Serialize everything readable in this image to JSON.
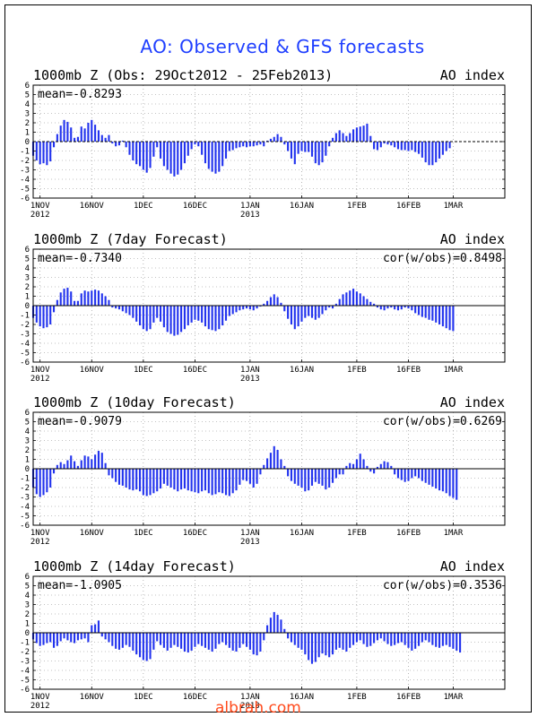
{
  "title": "AO: Observed & GFS forecasts",
  "watermark": "albrah.com",
  "colors": {
    "bar": "#2233ee",
    "axis": "#000000",
    "grid": "#888888",
    "title": "#1f3fff",
    "watermark": "#ff4a1c"
  },
  "x_ticks": [
    {
      "day": 0,
      "label": "1NOV",
      "year": "2012"
    },
    {
      "day": 15,
      "label": "16NOV",
      "year": ""
    },
    {
      "day": 30,
      "label": "1DEC",
      "year": ""
    },
    {
      "day": 45,
      "label": "16DEC",
      "year": ""
    },
    {
      "day": 61,
      "label": "1JAN",
      "year": "2013"
    },
    {
      "day": 76,
      "label": "16JAN",
      "year": ""
    },
    {
      "day": 92,
      "label": "1FEB",
      "year": ""
    },
    {
      "day": 107,
      "label": "16FEB",
      "year": ""
    },
    {
      "day": 120,
      "label": "1MAR",
      "year": ""
    }
  ],
  "chart_data": [
    {
      "type": "bar",
      "title": "1000mb Z (Obs: 29Oct2012 - 25Feb2013)",
      "right_title": "AO index",
      "mean": "mean=-0.8293",
      "cor": "",
      "x_start": -2,
      "ylim": [
        -6,
        6
      ],
      "yticks": [
        6,
        5,
        4,
        3,
        2,
        1,
        0,
        -1,
        -2,
        -3,
        -4,
        -5,
        -6
      ],
      "values": [
        -1.5,
        -2.0,
        -2.4,
        -2.3,
        -2.5,
        -2.1,
        -0.6,
        0.8,
        1.7,
        2.3,
        2.1,
        1.5,
        0.4,
        0.5,
        1.6,
        1.4,
        2.0,
        2.3,
        1.8,
        1.2,
        0.7,
        0.4,
        0.7,
        -0.2,
        -0.5,
        -0.4,
        0.1,
        -0.6,
        -1.4,
        -2.0,
        -2.4,
        -2.6,
        -3.0,
        -3.3,
        -2.8,
        -1.6,
        -0.6,
        -1.8,
        -2.6,
        -3.0,
        -3.4,
        -3.7,
        -3.5,
        -3.0,
        -2.3,
        -1.5,
        -0.8,
        -0.3,
        -0.5,
        -1.4,
        -2.3,
        -2.9,
        -3.2,
        -3.4,
        -3.2,
        -2.6,
        -1.8,
        -1.0,
        -0.9,
        -0.7,
        -0.6,
        -0.5,
        -0.6,
        -0.5,
        -0.5,
        -0.4,
        -0.3,
        -0.5,
        0.1,
        0.3,
        0.5,
        0.8,
        0.5,
        -0.3,
        -1.0,
        -1.8,
        -2.4,
        -1.3,
        -1.0,
        -1.1,
        -1.1,
        -1.6,
        -2.3,
        -2.5,
        -2.2,
        -1.5,
        -0.5,
        0.4,
        0.9,
        1.2,
        0.9,
        0.6,
        0.9,
        1.3,
        1.5,
        1.6,
        1.7,
        1.9,
        0.6,
        -0.8,
        -0.9,
        -0.6,
        -0.2,
        -0.3,
        -0.4,
        -0.6,
        -0.8,
        -0.9,
        -0.9,
        -1.0,
        -0.9,
        -1.1,
        -1.3,
        -1.7,
        -2.2,
        -2.5,
        -2.5,
        -2.2,
        -1.8,
        -1.4,
        -1.0,
        -0.7
      ]
    },
    {
      "type": "bar",
      "title": "1000mb Z (7day Forecast)",
      "right_title": "AO index",
      "mean": "mean=-0.7340",
      "cor": "cor(w/obs)=0.8498",
      "x_start": -2,
      "ylim": [
        -6,
        6
      ],
      "yticks": [
        6,
        5,
        4,
        3,
        2,
        1,
        0,
        -1,
        -2,
        -3,
        -4,
        -5,
        -6
      ],
      "values": [
        -1.3,
        -1.8,
        -2.2,
        -2.4,
        -2.3,
        -2.0,
        -0.7,
        0.6,
        1.4,
        1.8,
        1.9,
        1.5,
        0.5,
        0.5,
        1.3,
        1.6,
        1.5,
        1.6,
        1.7,
        1.6,
        1.3,
        1.0,
        0.6,
        -0.2,
        -0.3,
        -0.4,
        -0.6,
        -0.8,
        -1.0,
        -1.3,
        -1.7,
        -2.1,
        -2.5,
        -2.7,
        -2.5,
        -1.8,
        -1.3,
        -1.7,
        -2.3,
        -2.8,
        -3.0,
        -3.2,
        -3.1,
        -2.8,
        -2.5,
        -2.1,
        -1.8,
        -1.5,
        -1.6,
        -1.8,
        -2.2,
        -2.5,
        -2.6,
        -2.7,
        -2.5,
        -2.1,
        -1.6,
        -1.1,
        -0.9,
        -0.7,
        -0.5,
        -0.4,
        -0.3,
        -0.4,
        -0.5,
        -0.3,
        -0.1,
        0.2,
        0.5,
        0.9,
        1.2,
        0.9,
        0.3,
        -0.6,
        -1.4,
        -2.0,
        -2.5,
        -2.2,
        -1.7,
        -1.3,
        -1.1,
        -1.3,
        -1.5,
        -1.3,
        -0.9,
        -0.5,
        -0.2,
        -0.3,
        0.2,
        0.7,
        1.2,
        1.4,
        1.6,
        1.8,
        1.5,
        1.3,
        1.0,
        0.7,
        0.4,
        0.2,
        -0.2,
        -0.4,
        -0.5,
        -0.3,
        -0.2,
        -0.4,
        -0.5,
        -0.4,
        -0.2,
        -0.3,
        -0.5,
        -0.8,
        -1.0,
        -1.2,
        -1.3,
        -1.5,
        -1.6,
        -1.8,
        -2.0,
        -2.2,
        -2.4,
        -2.6,
        -2.7
      ]
    },
    {
      "type": "bar",
      "title": "1000mb Z (10day Forecast)",
      "right_title": "AO index",
      "mean": "mean=-0.9079",
      "cor": "cor(w/obs)=0.6269",
      "x_start": -2,
      "ylim": [
        -6,
        6
      ],
      "yticks": [
        6,
        5,
        4,
        3,
        2,
        1,
        0,
        -1,
        -2,
        -3,
        -4,
        -5,
        -6
      ],
      "values": [
        -2.0,
        -2.7,
        -3.0,
        -2.8,
        -2.5,
        -2.0,
        -0.5,
        0.4,
        0.7,
        0.5,
        0.9,
        1.4,
        0.8,
        0.3,
        0.9,
        1.4,
        1.3,
        1.0,
        1.5,
        1.9,
        1.7,
        0.6,
        -0.7,
        -1.0,
        -1.4,
        -1.7,
        -1.8,
        -2.0,
        -2.2,
        -2.3,
        -2.2,
        -2.4,
        -2.8,
        -2.9,
        -2.8,
        -2.6,
        -2.4,
        -2.1,
        -1.6,
        -1.8,
        -2.0,
        -2.2,
        -2.4,
        -2.2,
        -2.1,
        -2.3,
        -2.4,
        -2.5,
        -2.6,
        -2.4,
        -2.3,
        -2.6,
        -2.8,
        -2.7,
        -2.5,
        -2.6,
        -2.8,
        -2.9,
        -2.6,
        -2.3,
        -1.7,
        -1.2,
        -1.3,
        -1.6,
        -2.0,
        -1.6,
        -0.6,
        0.4,
        1.1,
        1.7,
        2.4,
        2.0,
        1.0,
        0.3,
        -0.8,
        -1.3,
        -1.6,
        -1.8,
        -2.0,
        -2.4,
        -2.3,
        -1.8,
        -1.4,
        -1.6,
        -1.8,
        -2.2,
        -2.0,
        -1.5,
        -1.0,
        -0.6,
        -0.6,
        0.3,
        0.6,
        0.5,
        1.0,
        1.6,
        1.0,
        0.3,
        -0.3,
        -0.5,
        0.2,
        0.5,
        0.8,
        0.7,
        0.3,
        -0.6,
        -1.0,
        -1.2,
        -1.4,
        -1.3,
        -1.0,
        -0.8,
        -1.0,
        -1.3,
        -1.5,
        -1.7,
        -1.9,
        -2.1,
        -2.3,
        -2.4,
        -2.6,
        -2.9,
        -3.1,
        -3.3
      ]
    },
    {
      "type": "bar",
      "title": "1000mb Z (14day Forecast)",
      "right_title": "AO index",
      "mean": "mean=-1.0905",
      "cor": "cor(w/obs)=0.3536",
      "x_start": -2,
      "ylim": [
        -6,
        6
      ],
      "yticks": [
        6,
        5,
        4,
        3,
        2,
        1,
        0,
        -1,
        -2,
        -3,
        -4,
        -5,
        -6
      ],
      "values": [
        -0.7,
        -1.1,
        -1.4,
        -1.3,
        -1.1,
        -1.0,
        -1.6,
        -1.4,
        -0.9,
        -0.6,
        -0.8,
        -1.0,
        -1.1,
        -0.8,
        -0.7,
        -0.6,
        -1.0,
        0.8,
        0.9,
        1.3,
        -0.4,
        -0.7,
        -1.0,
        -1.4,
        -1.7,
        -1.8,
        -1.6,
        -1.3,
        -1.5,
        -1.9,
        -2.3,
        -2.6,
        -2.9,
        -3.0,
        -2.8,
        -1.8,
        -0.9,
        -1.3,
        -1.6,
        -1.9,
        -1.6,
        -1.3,
        -1.5,
        -1.7,
        -2.0,
        -2.1,
        -1.9,
        -1.5,
        -1.2,
        -1.4,
        -1.6,
        -1.8,
        -2.0,
        -1.7,
        -1.2,
        -1.0,
        -1.3,
        -1.6,
        -1.9,
        -2.0,
        -1.6,
        -1.2,
        -1.5,
        -1.8,
        -2.3,
        -2.4,
        -2.0,
        -0.8,
        0.8,
        1.6,
        2.2,
        1.9,
        1.4,
        0.4,
        -0.6,
        -1.0,
        -1.3,
        -1.6,
        -1.8,
        -2.3,
        -2.9,
        -3.3,
        -3.1,
        -2.6,
        -2.2,
        -2.4,
        -2.6,
        -2.3,
        -1.8,
        -1.6,
        -1.8,
        -2.0,
        -1.6,
        -1.3,
        -1.0,
        -0.8,
        -1.2,
        -1.5,
        -1.4,
        -1.1,
        -0.8,
        -0.6,
        -0.9,
        -1.2,
        -1.4,
        -1.3,
        -1.1,
        -1.0,
        -1.3,
        -1.6,
        -1.9,
        -1.7,
        -1.4,
        -1.0,
        -0.8,
        -1.0,
        -1.3,
        -1.5,
        -1.6,
        -1.4,
        -1.3,
        -1.5,
        -1.7,
        -1.9,
        -2.1
      ]
    }
  ]
}
